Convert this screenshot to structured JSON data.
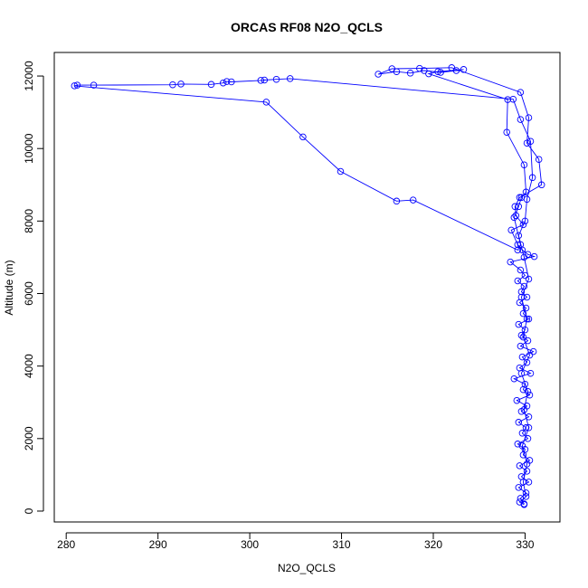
{
  "chart_data": {
    "type": "line",
    "title": "ORCAS RF08 N2O_QCLS",
    "xlabel": "N2O_QCLS",
    "ylabel": "Altitude (m)",
    "xlim": [
      278.7,
      333.8
    ],
    "ylim": [
      -300,
      12650
    ],
    "xticks": [
      280,
      290,
      300,
      310,
      320,
      330
    ],
    "yticks": [
      0,
      2000,
      4000,
      6000,
      8000,
      10000,
      12000
    ],
    "grid": false,
    "colors": {
      "series": "#0000ff"
    },
    "series": [
      {
        "name": "",
        "points": [
          [
            329.9,
            200
          ],
          [
            329.5,
            350
          ],
          [
            330.1,
            500
          ],
          [
            329.3,
            650
          ],
          [
            330.4,
            800
          ],
          [
            329.6,
            950
          ],
          [
            330.2,
            1100
          ],
          [
            329.4,
            1250
          ],
          [
            330.5,
            1400
          ],
          [
            329.8,
            1550
          ],
          [
            330.0,
            1700
          ],
          [
            329.2,
            1850
          ],
          [
            330.3,
            2000
          ],
          [
            329.7,
            2150
          ],
          [
            330.1,
            2300
          ],
          [
            329.3,
            2450
          ],
          [
            330.4,
            2600
          ],
          [
            329.6,
            2750
          ],
          [
            330.2,
            2900
          ],
          [
            329.1,
            3050
          ],
          [
            330.5,
            3200
          ],
          [
            329.8,
            3350
          ],
          [
            330.0,
            3500
          ],
          [
            328.8,
            3650
          ],
          [
            330.6,
            3800
          ],
          [
            329.4,
            3950
          ],
          [
            330.2,
            4100
          ],
          [
            329.7,
            4250
          ],
          [
            330.9,
            4400
          ],
          [
            329.5,
            4550
          ],
          [
            330.3,
            4700
          ],
          [
            329.6,
            4850
          ],
          [
            330.0,
            5000
          ],
          [
            329.3,
            5150
          ],
          [
            330.4,
            5300
          ],
          [
            329.8,
            5450
          ],
          [
            330.1,
            5600
          ],
          [
            329.4,
            5750
          ],
          [
            330.2,
            5900
          ],
          [
            329.6,
            6050
          ],
          [
            329.9,
            6200
          ],
          [
            329.2,
            6350
          ],
          [
            330.0,
            6500
          ],
          [
            329.5,
            6650
          ],
          [
            328.4,
            6870
          ],
          [
            331.0,
            7020
          ],
          [
            330.3,
            7080
          ],
          [
            329.7,
            7200
          ],
          [
            329.2,
            7350
          ],
          [
            328.5,
            7750
          ],
          [
            329.8,
            7900
          ],
          [
            329.0,
            8150
          ],
          [
            328.9,
            8400
          ],
          [
            329.4,
            8650
          ],
          [
            331.8,
            9000
          ],
          [
            331.5,
            9700
          ],
          [
            330.2,
            10150
          ],
          [
            330.4,
            10850
          ],
          [
            329.5,
            11550
          ],
          [
            322.0,
            12230
          ],
          [
            318.5,
            12210
          ],
          [
            315.5,
            12200
          ],
          [
            314.0,
            12050
          ],
          [
            316.0,
            12120
          ],
          [
            317.5,
            12080
          ],
          [
            319.0,
            12150
          ],
          [
            320.8,
            12100
          ],
          [
            322.5,
            12150
          ],
          [
            323.3,
            12180
          ],
          [
            320.5,
            12120
          ],
          [
            319.5,
            12060
          ],
          [
            328.1,
            11350
          ],
          [
            328.0,
            10450
          ],
          [
            329.9,
            9550
          ],
          [
            330.1,
            8800
          ],
          [
            329.6,
            8650
          ],
          [
            329.3,
            8400
          ],
          [
            328.8,
            8100
          ],
          [
            329.5,
            7350
          ],
          [
            329.2,
            7200
          ],
          [
            317.8,
            8580
          ],
          [
            316.0,
            8550
          ],
          [
            309.9,
            9370
          ],
          [
            305.8,
            10320
          ],
          [
            301.8,
            11280
          ],
          [
            280.9,
            11730
          ],
          [
            281.2,
            11750
          ],
          [
            283.0,
            11750
          ],
          [
            291.6,
            11760
          ],
          [
            292.5,
            11780
          ],
          [
            295.8,
            11770
          ],
          [
            297.1,
            11810
          ],
          [
            297.5,
            11850
          ],
          [
            298.0,
            11840
          ],
          [
            301.2,
            11880
          ],
          [
            301.6,
            11890
          ],
          [
            302.9,
            11910
          ],
          [
            304.4,
            11930
          ],
          [
            328.7,
            11360
          ],
          [
            329.5,
            10800
          ],
          [
            330.6,
            10200
          ],
          [
            330.8,
            9200
          ],
          [
            330.2,
            8600
          ],
          [
            330.0,
            8000
          ],
          [
            329.3,
            7600
          ],
          [
            329.9,
            7000
          ],
          [
            330.4,
            6400
          ],
          [
            329.6,
            5900
          ],
          [
            330.2,
            5300
          ],
          [
            329.8,
            4800
          ],
          [
            330.5,
            4300
          ],
          [
            329.6,
            3800
          ],
          [
            330.3,
            3300
          ],
          [
            329.9,
            2800
          ],
          [
            330.4,
            2300
          ],
          [
            329.7,
            1800
          ],
          [
            330.2,
            1300
          ],
          [
            329.8,
            800
          ],
          [
            330.1,
            400
          ],
          [
            329.4,
            250
          ],
          [
            329.9,
            180
          ]
        ]
      }
    ]
  }
}
